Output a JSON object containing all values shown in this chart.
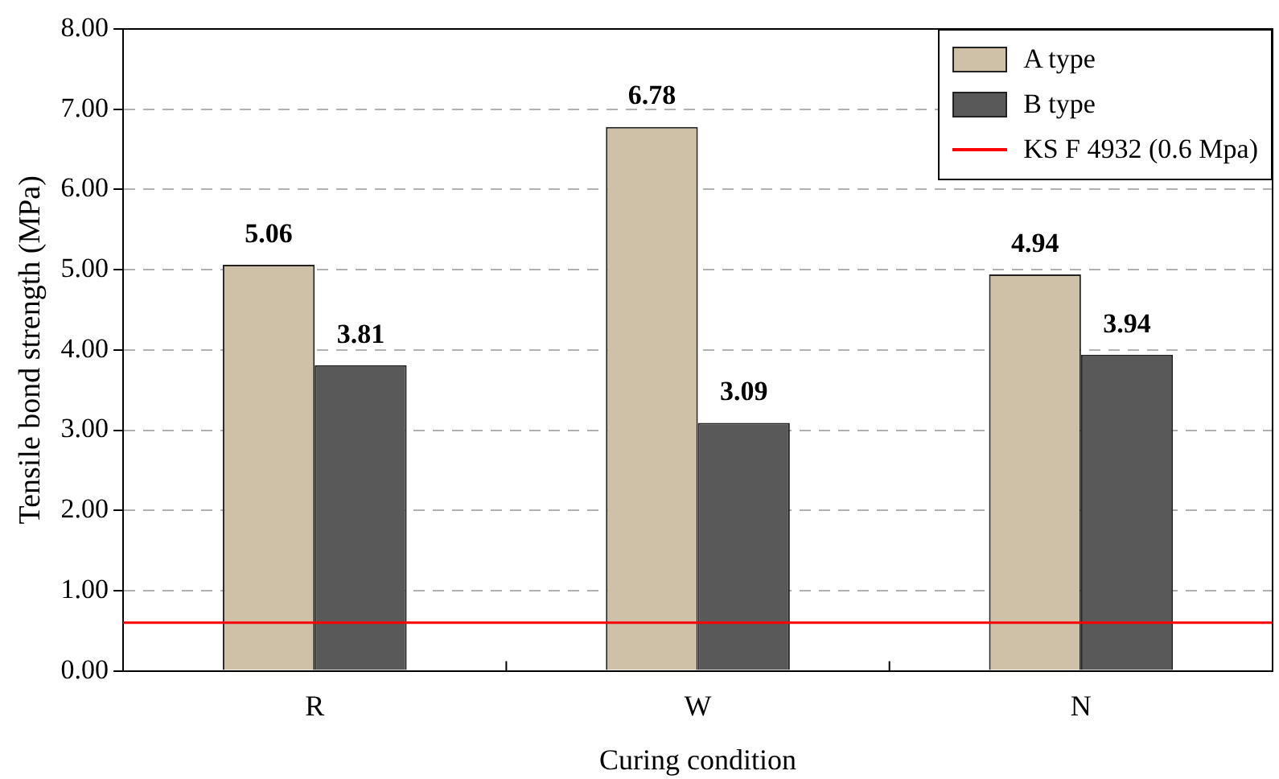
{
  "chart_data": {
    "type": "bar",
    "xlabel": "Curing condition",
    "ylabel": "Tensile bond strength (MPa)",
    "categories": [
      "R",
      "W",
      "N"
    ],
    "series": [
      {
        "name": "A type",
        "color": "#cfc0a8",
        "values": [
          5.06,
          6.78,
          4.94
        ]
      },
      {
        "name": "B type",
        "color": "#595959",
        "values": [
          3.81,
          3.09,
          3.94
        ]
      }
    ],
    "ylim": [
      0,
      8
    ],
    "yticks": [
      {
        "value": 0,
        "label": "0.00"
      },
      {
        "value": 1,
        "label": "1.00"
      },
      {
        "value": 2,
        "label": "2.00"
      },
      {
        "value": 3,
        "label": "3.00"
      },
      {
        "value": 4,
        "label": "4.00"
      },
      {
        "value": 5,
        "label": "5.00"
      },
      {
        "value": 6,
        "label": "6.00"
      },
      {
        "value": 7,
        "label": "7.00"
      },
      {
        "value": 8,
        "label": "8.00"
      }
    ],
    "ref_lines": [
      {
        "axis": "y",
        "value": 0.6,
        "label": "KS F 4932 (0.6 Mpa)",
        "color": "#ff0000"
      }
    ],
    "grid": "y",
    "legend": "top right",
    "data_labels": true
  }
}
